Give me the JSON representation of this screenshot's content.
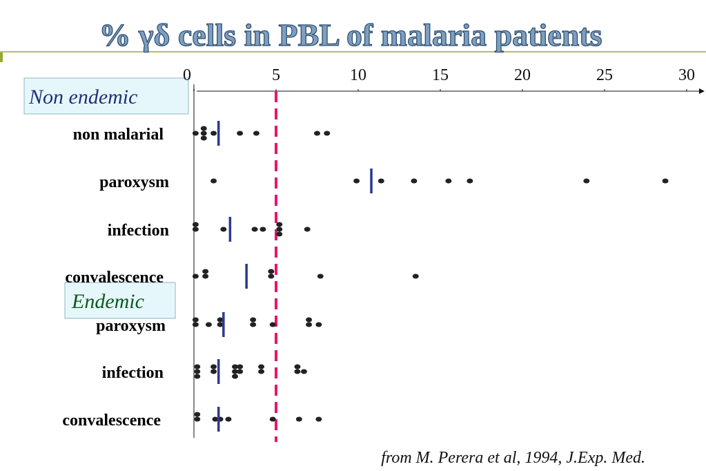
{
  "chart_data": {
    "type": "strip",
    "title": "% γδ  cells in PBL of malaria patients",
    "source": "from M. Perera et al, 1994, J.Exp. Med.",
    "section_labels": [
      "Non endemic",
      "Endemic"
    ],
    "xlim": [
      0,
      30
    ],
    "xticks": [
      0,
      5,
      10,
      15,
      20,
      25,
      30
    ],
    "threshold": 5,
    "dot_color": "#222222",
    "median_color": "#2b3990",
    "threshold_color": "#e8166e",
    "groups": [
      {
        "name": "non malarial",
        "values": [
          0.1,
          0.6,
          0.6,
          0.6,
          1.2,
          2.8,
          3.8,
          7.5,
          8.1
        ],
        "median": 1.5
      },
      {
        "name": "paroxysm",
        "values": [
          1.2,
          9.9,
          11.4,
          13.4,
          15.5,
          16.8,
          23.9,
          28.7
        ],
        "median": 10.8
      },
      {
        "name": "infection",
        "values": [
          0.1,
          0.1,
          1.8,
          3.7,
          4.2,
          5.2,
          5.2,
          5.2,
          6.9
        ],
        "median": 2.2
      },
      {
        "name": "convalescence",
        "values": [
          0.1,
          0.7,
          0.7,
          4.7,
          4.7,
          7.7,
          13.5
        ],
        "median": 3.2
      },
      {
        "name": "paroxysm",
        "values": [
          0.1,
          0.1,
          0.9,
          1.6,
          1.6,
          3.6,
          3.6,
          4.8,
          7.0,
          7.0,
          7.6
        ],
        "median": 1.8
      },
      {
        "name": "infection",
        "values": [
          0.2,
          0.2,
          0.2,
          1.2,
          1.2,
          2.5,
          2.5,
          2.5,
          2.8,
          2.8,
          4.1,
          4.1,
          6.3,
          6.3,
          6.7
        ],
        "median": 1.5
      },
      {
        "name": "convalescence",
        "values": [
          0.2,
          0.2,
          1.3,
          1.6,
          2.1,
          4.8,
          6.4,
          7.6
        ],
        "median": 1.5
      }
    ]
  }
}
